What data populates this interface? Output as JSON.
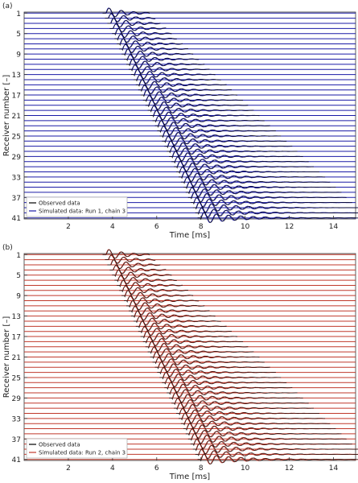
{
  "chart_data": [
    {
      "type": "line",
      "panel_label": "(a)",
      "xlabel": "Time [ms]",
      "ylabel": "Receiver number [–]",
      "xlim": [
        0,
        15
      ],
      "ylim": [
        1,
        41
      ],
      "x_ticks": [
        2,
        4,
        6,
        8,
        10,
        12,
        14
      ],
      "y_ticks": [
        1,
        5,
        9,
        13,
        17,
        21,
        25,
        29,
        33,
        37,
        41
      ],
      "receivers": 41,
      "series": [
        {
          "name": "Observed data",
          "color": "#000000"
        },
        {
          "name": "Simulated data: Run 1, chain 3",
          "color": "#1a1aa6"
        }
      ],
      "first_arrival_ms": {
        "receiver_1": 3.7,
        "receiver_41": 8.0
      },
      "legend": "bottom-left",
      "grid": false
    },
    {
      "type": "line",
      "panel_label": "(b)",
      "xlabel": "Time [ms]",
      "ylabel": "Receiver number [–]",
      "xlim": [
        0,
        15
      ],
      "ylim": [
        1,
        41
      ],
      "x_ticks": [
        2,
        4,
        6,
        8,
        10,
        12,
        14
      ],
      "y_ticks": [
        1,
        5,
        9,
        13,
        17,
        21,
        25,
        29,
        33,
        37,
        41
      ],
      "receivers": 41,
      "series": [
        {
          "name": "Observed data",
          "color": "#000000"
        },
        {
          "name": "Simulated data: Run 2, chain 3",
          "color": "#c0392b"
        }
      ],
      "first_arrival_ms": {
        "receiver_1": 3.7,
        "receiver_41": 8.0
      },
      "legend": "bottom-left",
      "grid": false
    }
  ]
}
